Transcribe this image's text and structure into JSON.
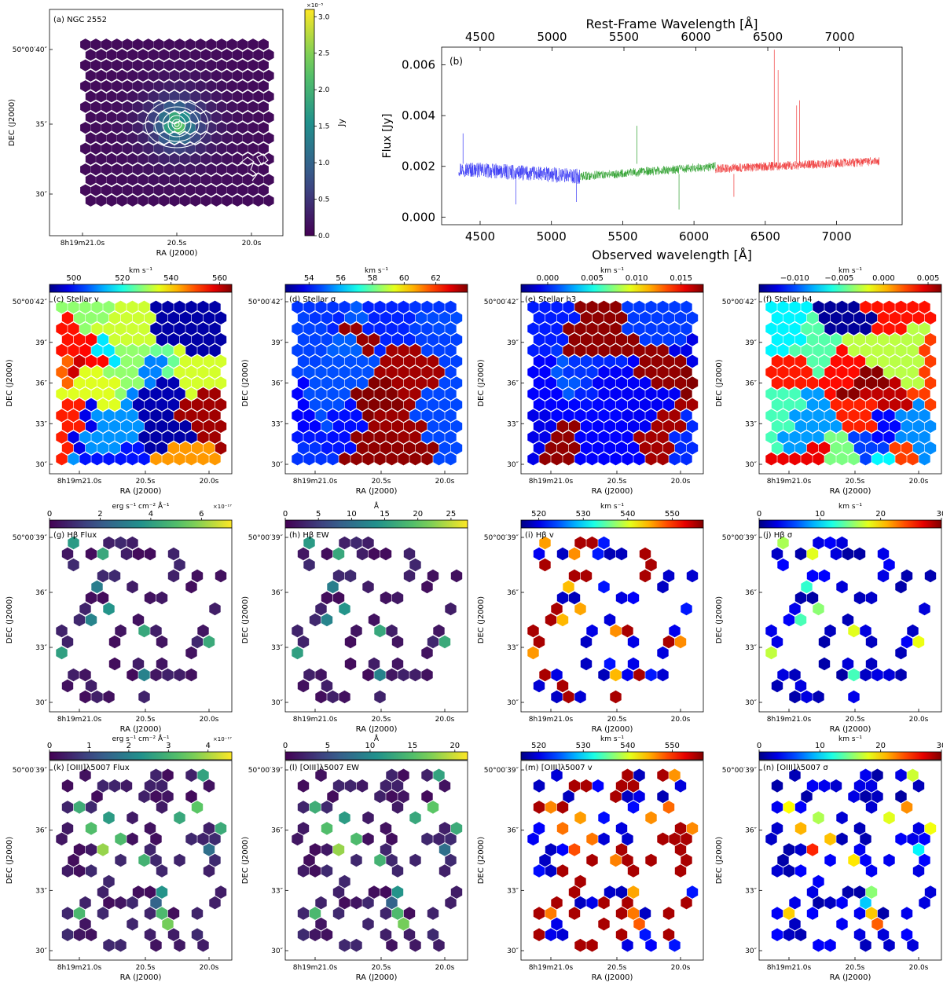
{
  "chart_data": [
    {
      "id": "a",
      "type": "heatmap",
      "panel_label": "(a) NGC 2552",
      "xlabel": "RA (J2000)",
      "ylabel": "DEC (J2000)",
      "xticks": [
        "8h19m21.0s",
        "20.5s",
        "20.0s"
      ],
      "yticks": [
        "50°00′40″",
        "35″",
        "30″"
      ],
      "colorbar": {
        "label": "Jy",
        "exponent": "×10⁻⁵",
        "ticks": [
          "0.0",
          "0.5",
          "1.0",
          "1.5",
          "2.0",
          "2.5",
          "3.0"
        ],
        "range": [
          0.0,
          3.1
        ],
        "colormap": "viridis"
      },
      "contours": "white",
      "peak": 3.0
    },
    {
      "id": "b",
      "type": "line",
      "panel_label": "(b)",
      "xlabel": "Observed wavelength [Å]",
      "x2label": "Rest-Frame Wavelength [Å]",
      "ylabel": "Flux [Jy]",
      "xticks": [
        "4500",
        "5000",
        "5500",
        "6000",
        "6500",
        "7000"
      ],
      "x2ticks": [
        "4500",
        "5000",
        "5500",
        "6000",
        "6500",
        "7000"
      ],
      "yticks": [
        "0.000",
        "0.002",
        "0.004",
        "0.006"
      ],
      "xlim": [
        4230,
        7460
      ],
      "ylim": [
        -0.0003,
        0.0067
      ],
      "series": [
        {
          "color": "#3a3af5",
          "x_range": [
            4350,
            5200
          ],
          "level": 0.0018
        },
        {
          "color": "#2ca02c",
          "x_range": [
            5200,
            6150
          ],
          "level": 0.0019
        },
        {
          "color": "#f03c3c",
          "x_range": [
            6150,
            7300
          ],
          "level": 0.0021
        }
      ],
      "emission_lines": [
        {
          "x": 4380,
          "y": 0.0033
        },
        {
          "x": 5600,
          "y": 0.0036
        },
        {
          "x": 6563,
          "y": 0.0066
        },
        {
          "x": 6590,
          "y": 0.0058
        },
        {
          "x": 6720,
          "y": 0.0044
        },
        {
          "x": 6740,
          "y": 0.0046
        }
      ],
      "absorption_lines": [
        {
          "x": 4750,
          "y": 0.0005
        },
        {
          "x": 5175,
          "y": 0.0006
        },
        {
          "x": 5895,
          "y": 0.0003
        },
        {
          "x": 6280,
          "y": 0.0008
        }
      ]
    },
    {
      "id": "c",
      "type": "heatmap",
      "panel_label": "(c) Stellar v",
      "cbar_unit": "km s⁻¹",
      "cbar_exponent": "",
      "cbar_ticks": [
        "500",
        "520",
        "540",
        "560"
      ],
      "range": [
        490,
        565
      ],
      "colormap": "jet",
      "style": "voronoi",
      "seed": 11,
      "xticks": [
        "8h19m21.0s",
        "20.5s",
        "20.0s"
      ],
      "yticks": [
        "50°00′42″",
        "39″",
        "36″",
        "33″",
        "30″"
      ],
      "xlabel": "RA (J2000)",
      "ylabel": "DEC (J2000)"
    },
    {
      "id": "d",
      "type": "heatmap",
      "panel_label": "(d) Stellar σ",
      "cbar_unit": "km s⁻¹",
      "cbar_exponent": "",
      "cbar_ticks": [
        "54",
        "56",
        "58",
        "60",
        "62"
      ],
      "range": [
        52.5,
        64
      ],
      "colormap": "jet",
      "style": "voronoi_low",
      "seed": 23,
      "xticks": [
        "8h19m21.0s",
        "20.5s",
        "20.0s"
      ],
      "yticks": [
        "50°00′42″",
        "39″",
        "36″",
        "33″",
        "30″"
      ],
      "xlabel": "RA (J2000)",
      "ylabel": "DEC (J2000)"
    },
    {
      "id": "e",
      "type": "heatmap",
      "panel_label": "(e) Stellar h3",
      "cbar_unit": "km s⁻¹",
      "cbar_exponent": "",
      "cbar_ticks": [
        "0.000",
        "0.005",
        "0.010",
        "0.015"
      ],
      "range": [
        -0.003,
        0.0175
      ],
      "colormap": "jet",
      "style": "voronoi_low",
      "seed": 37,
      "xticks": [
        "8h19m21.0s",
        "20.5s",
        "20.0s"
      ],
      "yticks": [
        "50°00′42″",
        "39″",
        "36″",
        "33″",
        "30″"
      ],
      "xlabel": "RA (J2000)",
      "ylabel": "DEC (J2000)"
    },
    {
      "id": "f",
      "type": "heatmap",
      "panel_label": "(f) Stellar h4",
      "cbar_unit": "km s⁻¹",
      "cbar_exponent": "",
      "cbar_ticks": [
        "−0.010",
        "−0.005",
        "0.000",
        "0.005"
      ],
      "range": [
        -0.014,
        0.0065
      ],
      "colormap": "jet",
      "style": "voronoi",
      "seed": 41,
      "xticks": [
        "8h19m21.0s",
        "20.5s",
        "20.0s"
      ],
      "yticks": [
        "50°00′42″",
        "39″",
        "36″",
        "33″",
        "30″"
      ],
      "xlabel": "RA (J2000)",
      "ylabel": "DEC (J2000)"
    },
    {
      "id": "g",
      "type": "heatmap",
      "panel_label": "(g) Hβ Flux",
      "cbar_unit": "erg s⁻¹ cm⁻² Å⁻¹",
      "cbar_exponent": "×10⁻¹⁷",
      "cbar_ticks": [
        "0",
        "2",
        "4",
        "6"
      ],
      "range": [
        0,
        7.2
      ],
      "colormap": "viridis",
      "style": "sparse_low",
      "seed": 53,
      "xticks": [
        "8h19m21.0s",
        "20.5s",
        "20.0s"
      ],
      "yticks": [
        "50°00′39″",
        "36″",
        "33″",
        "30″"
      ],
      "xlabel": "RA (J2000)",
      "ylabel": "DEC (J2000)"
    },
    {
      "id": "h",
      "type": "heatmap",
      "panel_label": "(h) Hβ EW",
      "cbar_unit": "Å",
      "cbar_exponent": "",
      "cbar_ticks": [
        "0",
        "5",
        "10",
        "15",
        "20",
        "25"
      ],
      "range": [
        0,
        27.5
      ],
      "colormap": "viridis",
      "style": "sparse_low",
      "seed": 53,
      "xticks": [
        "8h19m21.0s",
        "20.5s",
        "20.0s"
      ],
      "yticks": [
        "50°00′39″",
        "36″",
        "33″",
        "30″"
      ],
      "xlabel": "RA (J2000)",
      "ylabel": "DEC (J2000)"
    },
    {
      "id": "i",
      "type": "heatmap",
      "panel_label": "(i) Hβ v",
      "cbar_unit": "km s⁻¹",
      "cbar_exponent": "",
      "cbar_ticks": [
        "520",
        "530",
        "540",
        "550"
      ],
      "range": [
        516,
        557
      ],
      "colormap": "jet",
      "style": "sparse_bimodal",
      "seed": 53,
      "xticks": [
        "8h19m21.0s",
        "20.5s",
        "20.0s"
      ],
      "yticks": [
        "50°00′39″",
        "36″",
        "33″",
        "30″"
      ],
      "xlabel": "RA (J2000)",
      "ylabel": "DEC (J2000)"
    },
    {
      "id": "j",
      "type": "heatmap",
      "panel_label": "(j) Hβ σ",
      "cbar_unit": "km s⁻¹",
      "cbar_exponent": "",
      "cbar_ticks": [
        "0",
        "10",
        "20",
        "30"
      ],
      "range": [
        0,
        30
      ],
      "colormap": "jet",
      "style": "sparse_low",
      "seed": 53,
      "xticks": [
        "8h19m21.0s",
        "20.5s",
        "20.0s"
      ],
      "yticks": [
        "50°00′39″",
        "36″",
        "33″",
        "30″"
      ],
      "xlabel": "RA (J2000)",
      "ylabel": "DEC (J2000)"
    },
    {
      "id": "k",
      "type": "heatmap",
      "panel_label": "(k) [OIII]λ5007 Flux",
      "cbar_unit": "erg s⁻¹ cm⁻² Å⁻¹",
      "cbar_exponent": "×10⁻¹⁷",
      "cbar_ticks": [
        "0",
        "1",
        "2",
        "3",
        "4"
      ],
      "range": [
        0,
        4.6
      ],
      "colormap": "viridis",
      "style": "sparse_low",
      "seed": 71,
      "xticks": [
        "8h19m21.0s",
        "20.5s",
        "20.0s"
      ],
      "yticks": [
        "50°00′39″",
        "36″",
        "33″",
        "30″"
      ],
      "xlabel": "RA (J2000)",
      "ylabel": "DEC (J2000)"
    },
    {
      "id": "l",
      "type": "heatmap",
      "panel_label": "(l) [OIII]λ5007 EW",
      "cbar_unit": "Å",
      "cbar_exponent": "",
      "cbar_ticks": [
        "0",
        "5",
        "10",
        "15",
        "20"
      ],
      "range": [
        0,
        21.5
      ],
      "colormap": "viridis",
      "style": "sparse_low",
      "seed": 71,
      "xticks": [
        "8h19m21.0s",
        "20.5s",
        "20.0s"
      ],
      "yticks": [
        "50°00′39″",
        "36″",
        "33″",
        "30″"
      ],
      "xlabel": "RA (J2000)",
      "ylabel": "DEC (J2000)"
    },
    {
      "id": "m",
      "type": "heatmap",
      "panel_label": "(m) [OIII]λ5007 v",
      "cbar_unit": "km s⁻¹",
      "cbar_exponent": "",
      "cbar_ticks": [
        "520",
        "530",
        "540",
        "550"
      ],
      "range": [
        516,
        557
      ],
      "colormap": "jet",
      "style": "sparse_bimodal",
      "seed": 71,
      "xticks": [
        "8h19m21.0s",
        "20.5s",
        "20.0s"
      ],
      "yticks": [
        "50°00′39″",
        "36″",
        "33″",
        "30″"
      ],
      "xlabel": "RA (J2000)",
      "ylabel": "DEC (J2000)"
    },
    {
      "id": "n",
      "type": "heatmap",
      "panel_label": "(n) [OIII]λ5007 σ",
      "cbar_unit": "km s⁻¹",
      "cbar_exponent": "",
      "cbar_ticks": [
        "0",
        "10",
        "20",
        "30"
      ],
      "range": [
        0,
        30
      ],
      "colormap": "jet",
      "style": "sparse_low",
      "seed": 71,
      "xticks": [
        "8h19m21.0s",
        "20.5s",
        "20.0s"
      ],
      "yticks": [
        "50°00′39″",
        "36″",
        "33″",
        "30″"
      ],
      "xlabel": "RA (J2000)",
      "ylabel": "DEC (J2000)"
    }
  ]
}
